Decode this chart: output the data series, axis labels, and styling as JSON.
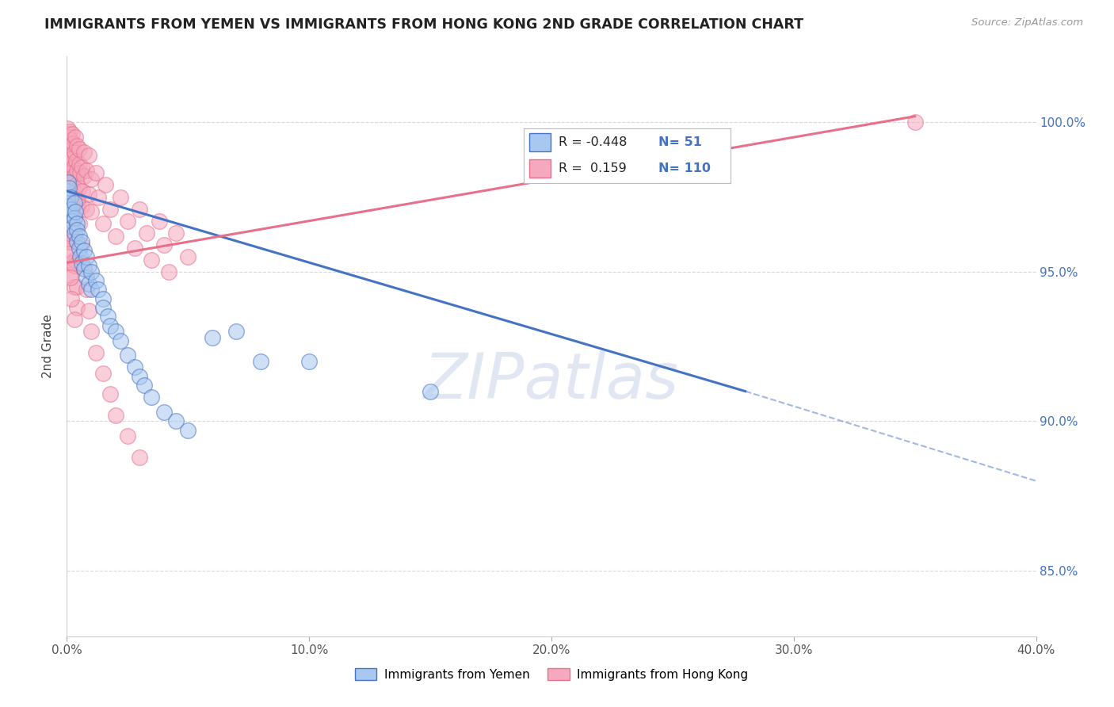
{
  "title": "IMMIGRANTS FROM YEMEN VS IMMIGRANTS FROM HONG KONG 2ND GRADE CORRELATION CHART",
  "source": "Source: ZipAtlas.com",
  "ylabel": "2nd Grade",
  "ytick_labels": [
    "85.0%",
    "90.0%",
    "95.0%",
    "100.0%"
  ],
  "ytick_values": [
    0.85,
    0.9,
    0.95,
    1.0
  ],
  "legend_label1": "Immigrants from Yemen",
  "legend_label2": "Immigrants from Hong Kong",
  "legend_R1": "-0.448",
  "legend_N1": "51",
  "legend_R2": " 0.159",
  "legend_N2": "110",
  "color_yemen": "#a8c8f0",
  "color_hongkong": "#f5a8be",
  "trend_color_yemen": "#4472c4",
  "trend_color_hongkong": "#e8708a",
  "watermark_color": "#cdd8ea",
  "xlim": [
    0.0,
    0.4
  ],
  "ylim": [
    0.828,
    1.022
  ],
  "grid_color": "#d8d8d8",
  "yemen_scatter_x": [
    0.0002,
    0.0003,
    0.0005,
    0.0007,
    0.001,
    0.0012,
    0.0015,
    0.002,
    0.0022,
    0.0025,
    0.003,
    0.003,
    0.0032,
    0.0035,
    0.004,
    0.004,
    0.0042,
    0.005,
    0.005,
    0.0055,
    0.006,
    0.006,
    0.007,
    0.007,
    0.008,
    0.008,
    0.009,
    0.009,
    0.01,
    0.01,
    0.012,
    0.013,
    0.015,
    0.015,
    0.017,
    0.018,
    0.02,
    0.022,
    0.025,
    0.028,
    0.03,
    0.032,
    0.035,
    0.04,
    0.045,
    0.05,
    0.06,
    0.07,
    0.08,
    0.1,
    0.15
  ],
  "yemen_scatter_y": [
    0.977,
    0.974,
    0.98,
    0.972,
    0.978,
    0.969,
    0.975,
    0.971,
    0.967,
    0.965,
    0.973,
    0.968,
    0.963,
    0.97,
    0.966,
    0.96,
    0.964,
    0.958,
    0.962,
    0.955,
    0.96,
    0.953,
    0.957,
    0.951,
    0.955,
    0.948,
    0.952,
    0.946,
    0.95,
    0.944,
    0.947,
    0.944,
    0.941,
    0.938,
    0.935,
    0.932,
    0.93,
    0.927,
    0.922,
    0.918,
    0.915,
    0.912,
    0.908,
    0.903,
    0.9,
    0.897,
    0.928,
    0.93,
    0.92,
    0.92,
    0.91
  ],
  "hongkong_scatter_x": [
    0.0001,
    0.0002,
    0.0003,
    0.0003,
    0.0004,
    0.0005,
    0.0005,
    0.0006,
    0.0007,
    0.0008,
    0.0009,
    0.001,
    0.001,
    0.0011,
    0.0012,
    0.0013,
    0.0014,
    0.0015,
    0.0015,
    0.0016,
    0.0017,
    0.0018,
    0.002,
    0.002,
    0.0021,
    0.0022,
    0.0023,
    0.0024,
    0.0025,
    0.0027,
    0.003,
    0.003,
    0.0032,
    0.0034,
    0.0035,
    0.0037,
    0.004,
    0.004,
    0.0042,
    0.0045,
    0.005,
    0.005,
    0.0052,
    0.0055,
    0.006,
    0.006,
    0.0065,
    0.007,
    0.007,
    0.008,
    0.008,
    0.009,
    0.009,
    0.01,
    0.01,
    0.012,
    0.013,
    0.015,
    0.016,
    0.018,
    0.02,
    0.022,
    0.025,
    0.028,
    0.03,
    0.033,
    0.035,
    0.038,
    0.04,
    0.042,
    0.045,
    0.05,
    0.002,
    0.003,
    0.004,
    0.0005,
    0.0008,
    0.0012,
    0.002,
    0.003,
    0.0003,
    0.0006,
    0.001,
    0.002,
    0.003,
    0.004,
    0.001,
    0.002,
    0.003,
    0.004,
    0.0004,
    0.0007,
    0.0009,
    0.0015,
    0.002,
    0.003,
    0.004,
    0.005,
    0.006,
    0.007,
    0.008,
    0.009,
    0.01,
    0.012,
    0.015,
    0.018,
    0.02,
    0.025,
    0.03,
    0.35
  ],
  "hongkong_scatter_y": [
    0.988,
    0.993,
    0.985,
    0.998,
    0.99,
    0.982,
    0.996,
    0.978,
    0.991,
    0.984,
    0.995,
    0.987,
    0.979,
    0.992,
    0.984,
    0.997,
    0.976,
    0.989,
    0.981,
    0.994,
    0.986,
    0.978,
    0.991,
    0.983,
    0.996,
    0.975,
    0.988,
    0.98,
    0.993,
    0.985,
    0.977,
    0.99,
    0.982,
    0.995,
    0.974,
    0.987,
    0.979,
    0.992,
    0.984,
    0.973,
    0.986,
    0.978,
    0.991,
    0.983,
    0.972,
    0.985,
    0.977,
    0.99,
    0.982,
    0.971,
    0.984,
    0.976,
    0.989,
    0.981,
    0.97,
    0.983,
    0.975,
    0.966,
    0.979,
    0.971,
    0.962,
    0.975,
    0.967,
    0.958,
    0.971,
    0.963,
    0.954,
    0.967,
    0.959,
    0.95,
    0.963,
    0.955,
    0.969,
    0.961,
    0.953,
    0.965,
    0.957,
    0.949,
    0.962,
    0.954,
    0.975,
    0.968,
    0.96,
    0.953,
    0.945,
    0.938,
    0.967,
    0.96,
    0.952,
    0.945,
    0.971,
    0.963,
    0.956,
    0.948,
    0.941,
    0.934,
    0.974,
    0.966,
    0.959,
    0.951,
    0.944,
    0.937,
    0.93,
    0.923,
    0.916,
    0.909,
    0.902,
    0.895,
    0.888,
    1.0
  ],
  "trend_yemen_x0": 0.0,
  "trend_yemen_y0": 0.977,
  "trend_yemen_x1": 0.28,
  "trend_yemen_y1": 0.91,
  "trend_dashed_x0": 0.28,
  "trend_dashed_y0": 0.91,
  "trend_dashed_x1": 0.4,
  "trend_dashed_y1": 0.88,
  "trend_hk_x0": 0.0,
  "trend_hk_y0": 0.953,
  "trend_hk_x1": 0.35,
  "trend_hk_y1": 1.002
}
